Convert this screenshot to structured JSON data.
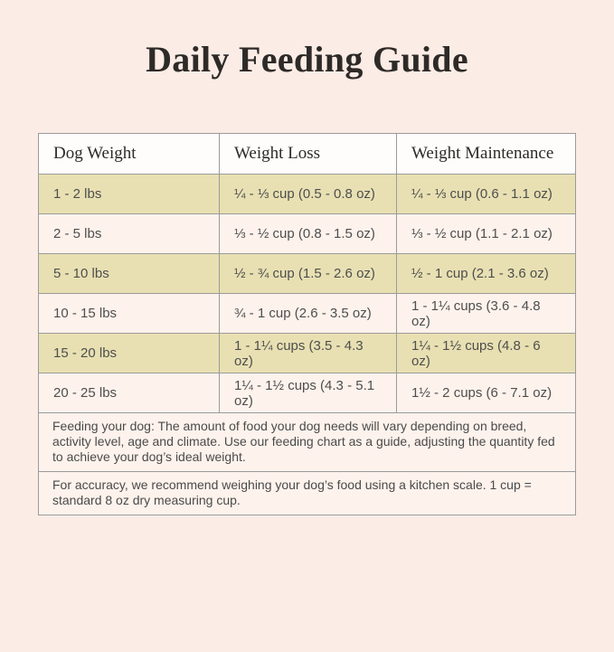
{
  "page": {
    "title": "Daily Feeding Guide",
    "background_color": "#fbece6"
  },
  "colors": {
    "stripe_row": "#e8e0b2",
    "plain_row": "#fdf2ec",
    "header_row": "#fefdfc",
    "border": "#9b9b9b",
    "title_text": "#2e2a27",
    "cell_text": "#4e4e4e"
  },
  "table": {
    "headers": [
      "Dog Weight",
      "Weight Loss",
      "Weight Maintenance"
    ],
    "rows": [
      [
        "1 - 2 lbs",
        "¼ - ⅓ cup (0.5 - 0.8 oz)",
        "¼ - ⅓ cup (0.6 - 1.1 oz)"
      ],
      [
        "2 - 5 lbs",
        "⅓ - ½ cup (0.8 - 1.5 oz)",
        "⅓ - ½ cup (1.1 - 2.1 oz)"
      ],
      [
        "5 - 10 lbs",
        "½ - ¾ cup (1.5 - 2.6 oz)",
        "½ - 1 cup (2.1 - 3.6 oz)"
      ],
      [
        "10 - 15 lbs",
        "¾ - 1 cup (2.6 - 3.5 oz)",
        "1 - 1¼ cups (3.6 - 4.8 oz)"
      ],
      [
        "15 - 20 lbs",
        "1 - 1¼ cups (3.5 - 4.3 oz)",
        "1¼ - 1½ cups (4.8 - 6 oz)"
      ],
      [
        "20 - 25 lbs",
        "1¼ - 1½ cups (4.3 - 5.1 oz)",
        "1½ - 2 cups (6 - 7.1 oz)"
      ]
    ]
  },
  "notes": [
    "Feeding your dog: The amount of food your dog needs will vary depending on breed, activity level, age and climate. Use our feeding chart as a guide, adjusting the quantity fed to achieve your dog’s ideal weight.",
    "For accuracy, we recommend weighing your dog’s food using a kitchen scale. 1 cup = standard 8 oz dry measuring cup."
  ]
}
